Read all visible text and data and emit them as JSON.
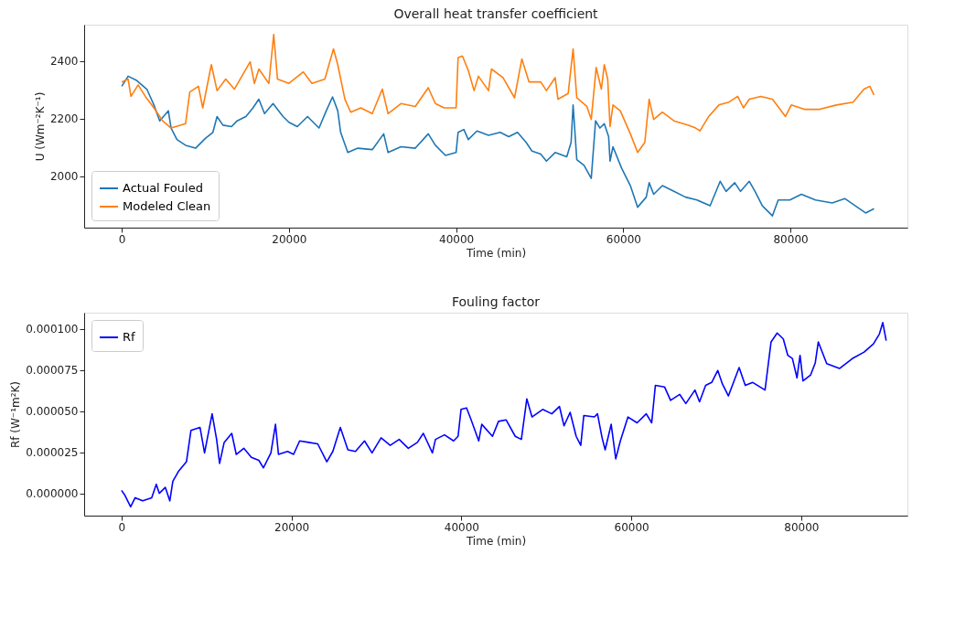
{
  "chart_data": [
    {
      "type": "line",
      "title": "Overall heat transfer coefficient",
      "xlabel": "Time (min)",
      "ylabel": "U (Wm⁻²K⁻¹)",
      "xlim": [
        -4500,
        94000
      ],
      "ylim": [
        1822,
        2527
      ],
      "xticks": [
        0,
        20000,
        40000,
        60000,
        80000
      ],
      "yticks": [
        2000,
        2200,
        2400
      ],
      "legend": "bottom left",
      "series": [
        {
          "name": "Actual Fouled",
          "color": "#1f77b4",
          "x": [
            0,
            760,
            1790,
            3000,
            3850,
            4540,
            5570,
            5900,
            6600,
            7630,
            8830,
            10030,
            10900,
            11400,
            12100,
            13130,
            13800,
            14850,
            15700,
            16400,
            17080,
            18100,
            19300,
            20000,
            21000,
            22230,
            23600,
            24470,
            25220,
            25840,
            26190,
            27040,
            28250,
            29970,
            31340,
            31860,
            33400,
            35120,
            36670,
            37520,
            38730,
            40000,
            40240,
            40930,
            41460,
            42500,
            43880,
            45270,
            46300,
            47350,
            48380,
            49080,
            50120,
            50810,
            51850,
            53240,
            53760,
            54000,
            54440,
            55310,
            56170,
            56690,
            57210,
            57730,
            58250,
            58420,
            58770,
            59810,
            60850,
            61720,
            62750,
            63100,
            63640,
            64680,
            66060,
            67450,
            68830,
            70390,
            71600,
            72300,
            73340,
            74030,
            75080,
            75770,
            76640,
            77850,
            78540,
            79930,
            81310,
            83000,
            85000,
            86500,
            88000,
            89000,
            90000
          ],
          "values": [
            2313,
            2348,
            2333,
            2303,
            2248,
            2193,
            2228,
            2168,
            2128,
            2108,
            2098,
            2133,
            2153,
            2208,
            2178,
            2173,
            2193,
            2208,
            2238,
            2268,
            2218,
            2253,
            2208,
            2188,
            2173,
            2208,
            2168,
            2228,
            2276,
            2228,
            2153,
            2083,
            2098,
            2093,
            2148,
            2083,
            2103,
            2098,
            2148,
            2108,
            2073,
            2083,
            2153,
            2163,
            2128,
            2158,
            2143,
            2153,
            2138,
            2153,
            2118,
            2088,
            2078,
            2053,
            2083,
            2068,
            2118,
            2248,
            2058,
            2038,
            1993,
            2193,
            2168,
            2183,
            2138,
            2053,
            2103,
            2028,
            1968,
            1893,
            1928,
            1978,
            1938,
            1968,
            1948,
            1928,
            1918,
            1898,
            1983,
            1948,
            1978,
            1948,
            1983,
            1948,
            1898,
            1863,
            1918,
            1918,
            1938,
            1918,
            1908,
            1923,
            1893,
            1873,
            1888
          ]
        },
        {
          "name": "Modeled Clean",
          "color": "#ff7f0e",
          "x": [
            0,
            760,
            1100,
            1960,
            2820,
            3850,
            4880,
            5900,
            7630,
            8140,
            9170,
            9690,
            10720,
            11400,
            12440,
            13470,
            15360,
            15870,
            16400,
            17600,
            18180,
            18630,
            20000,
            21720,
            22750,
            24300,
            25330,
            25840,
            26700,
            27390,
            28600,
            29970,
            31170,
            31860,
            33400,
            35120,
            36670,
            37520,
            38560,
            40000,
            40240,
            40760,
            41460,
            42150,
            42670,
            43880,
            44230,
            45610,
            46990,
            47870,
            48730,
            50120,
            50810,
            51850,
            52190,
            53410,
            54000,
            54440,
            55650,
            56170,
            56760,
            57380,
            57730,
            58140,
            58420,
            58770,
            59640,
            60850,
            61720,
            62580,
            63100,
            63640,
            64680,
            66060,
            67800,
            68660,
            69180,
            70220,
            71440,
            72650,
            73690,
            74380,
            75080,
            76460,
            77850,
            79410,
            80100,
            81660,
            83500,
            85500,
            87500,
            88800,
            89500,
            90000
          ],
          "values": [
            2328,
            2338,
            2278,
            2318,
            2278,
            2238,
            2193,
            2168,
            2183,
            2293,
            2313,
            2238,
            2388,
            2298,
            2338,
            2303,
            2398,
            2323,
            2373,
            2323,
            2493,
            2338,
            2323,
            2363,
            2323,
            2338,
            2443,
            2388,
            2268,
            2223,
            2238,
            2218,
            2303,
            2218,
            2253,
            2243,
            2308,
            2253,
            2238,
            2238,
            2413,
            2418,
            2368,
            2298,
            2348,
            2298,
            2373,
            2343,
            2273,
            2408,
            2328,
            2328,
            2298,
            2343,
            2268,
            2288,
            2443,
            2273,
            2243,
            2198,
            2378,
            2303,
            2388,
            2338,
            2173,
            2248,
            2228,
            2148,
            2083,
            2118,
            2268,
            2198,
            2223,
            2193,
            2178,
            2168,
            2158,
            2208,
            2248,
            2258,
            2278,
            2238,
            2268,
            2278,
            2268,
            2208,
            2248,
            2233,
            2233,
            2248,
            2258,
            2303,
            2313,
            2283
          ]
        }
      ]
    },
    {
      "type": "line",
      "title": "Fouling factor",
      "xlabel": "Time (min)",
      "ylabel": "Rf (W⁻¹m²K)",
      "xlim": [
        -4400,
        92500
      ],
      "ylim": [
        -1.36e-05,
        0.00011
      ],
      "xticks": [
        0,
        20000,
        40000,
        60000,
        80000
      ],
      "yticks": [
        {
          "value": 0,
          "label": "0.000000"
        },
        {
          "value": 2.5e-05,
          "label": "0.000025"
        },
        {
          "value": 5e-05,
          "label": "0.000050"
        },
        {
          "value": 7.5e-05,
          "label": "0.000075"
        },
        {
          "value": 0.0001,
          "label": "0.000100"
        }
      ],
      "legend": "top left",
      "series": [
        {
          "name": "Rf",
          "color": "#0000ff",
          "x": [
            0,
            360,
            1070,
            1600,
            2490,
            3550,
            4090,
            4440,
            5150,
            5680,
            6040,
            6750,
            7640,
            8170,
            9240,
            9770,
            10660,
            11190,
            11540,
            12080,
            12970,
            13500,
            14390,
            15280,
            16160,
            16700,
            17580,
            18120,
            18470,
            19540,
            20250,
            20960,
            22020,
            23090,
            24160,
            24870,
            25750,
            26640,
            27530,
            28600,
            29480,
            30550,
            31620,
            32680,
            33750,
            34820,
            35520,
            36590,
            36950,
            38010,
            39080,
            39610,
            39960,
            40610,
            41150,
            42040,
            42400,
            43660,
            44370,
            45270,
            46340,
            47060,
            47700,
            48310,
            49570,
            50640,
            51540,
            52080,
            52800,
            53510,
            54050,
            54410,
            55660,
            56020,
            56560,
            56920,
            57630,
            58170,
            58710,
            59610,
            60680,
            61760,
            62400,
            62830,
            63910,
            64620,
            65700,
            66420,
            67490,
            68030,
            68750,
            69460,
            70180,
            70720,
            71430,
            72690,
            73410,
            74300,
            75740,
            76450,
            77170,
            77890,
            78420,
            78960,
            79500,
            79860,
            80210,
            81110,
            81650,
            82010,
            83000,
            84500,
            86000,
            87400,
            88500,
            89200,
            89600,
            90000
          ],
          "values": [
            1.8e-06,
            -9e-07,
            -8.2e-06,
            -2.7e-06,
            -4.6e-06,
            -2.7e-06,
            5.5e-06,
            0,
            3.6e-06,
            -4.6e-06,
            7.3e-06,
            1.37e-05,
            1.92e-05,
            3.83e-05,
            4.01e-05,
            2.46e-05,
            4.84e-05,
            3.28e-05,
            1.82e-05,
            3.1e-05,
            3.65e-05,
            2.37e-05,
            2.74e-05,
            2.19e-05,
            2.01e-05,
            1.55e-05,
            2.46e-05,
            4.2e-05,
            2.37e-05,
            2.55e-05,
            2.37e-05,
            3.19e-05,
            3.1e-05,
            3.01e-05,
            1.92e-05,
            2.55e-05,
            4.01e-05,
            2.65e-05,
            2.55e-05,
            3.19e-05,
            2.46e-05,
            3.38e-05,
            2.92e-05,
            3.28e-05,
            2.74e-05,
            3.1e-05,
            3.65e-05,
            2.46e-05,
            3.28e-05,
            3.56e-05,
            3.19e-05,
            3.47e-05,
            5.11e-05,
            5.2e-05,
            4.47e-05,
            3.19e-05,
            4.2e-05,
            3.47e-05,
            4.38e-05,
            4.47e-05,
            3.47e-05,
            3.28e-05,
            5.75e-05,
            4.65e-05,
            5.11e-05,
            4.84e-05,
            5.29e-05,
            4.11e-05,
            4.93e-05,
            3.47e-05,
            2.92e-05,
            4.74e-05,
            4.65e-05,
            4.84e-05,
            3.38e-05,
            2.65e-05,
            4.2e-05,
            2.1e-05,
            3.19e-05,
            4.65e-05,
            4.29e-05,
            4.84e-05,
            4.29e-05,
            6.57e-05,
            6.48e-05,
            5.66e-05,
            6.02e-05,
            5.47e-05,
            6.29e-05,
            5.57e-05,
            6.57e-05,
            6.75e-05,
            7.48e-05,
            6.66e-05,
            5.93e-05,
            7.66e-05,
            6.57e-05,
            6.75e-05,
            6.29e-05,
            9.22e-05,
            9.76e-05,
            9.4e-05,
            8.4e-05,
            8.21e-05,
            7.03e-05,
            8.4e-05,
            6.84e-05,
            7.21e-05,
            7.94e-05,
            9.22e-05,
            7.9e-05,
            7.6e-05,
            8.2e-05,
            8.6e-05,
            9.1e-05,
            9.7e-05,
            0.000104,
            9.3e-05
          ]
        }
      ]
    }
  ]
}
